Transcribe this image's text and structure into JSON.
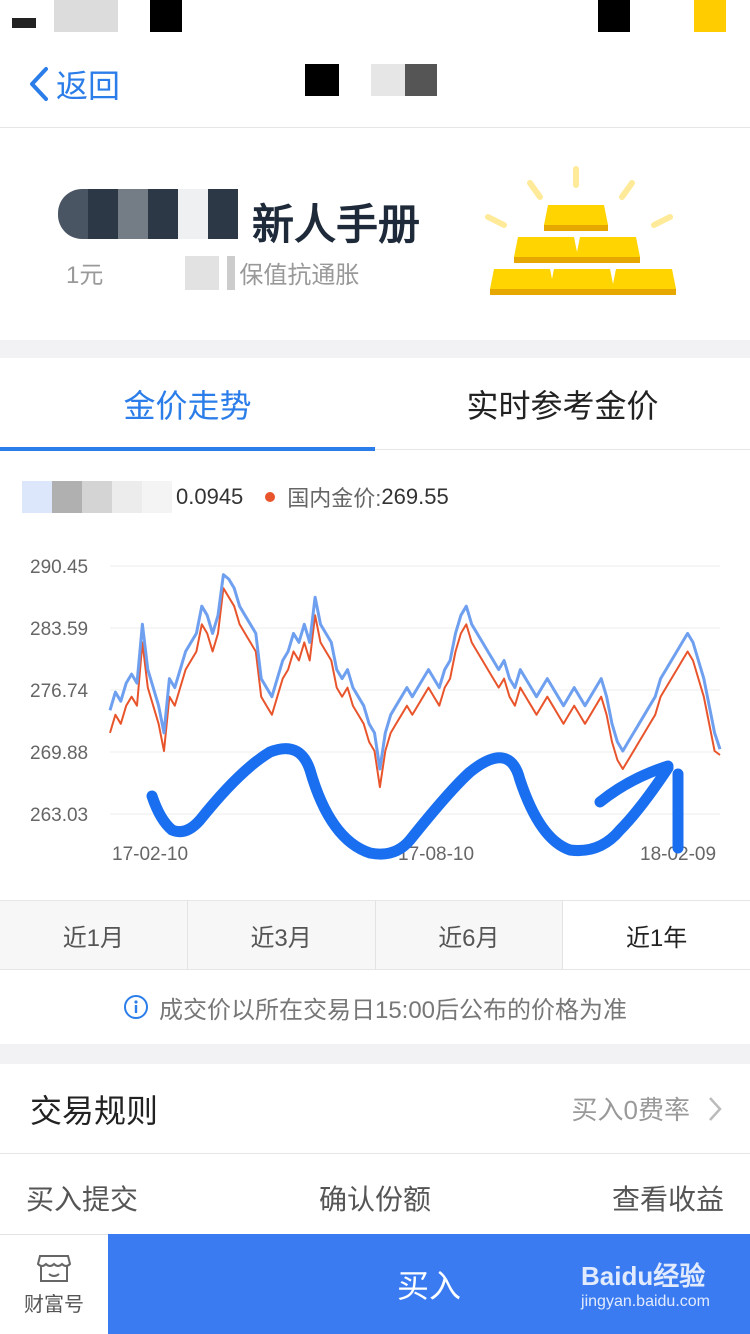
{
  "nav": {
    "back_label": "返回"
  },
  "banner": {
    "title": "新人手册",
    "sub_prefix": "1元",
    "sub_suffix": "保值抗通胀"
  },
  "tabs": [
    {
      "label": "金价走势",
      "active": true
    },
    {
      "label": "实时参考金价",
      "active": false
    }
  ],
  "legend": {
    "value1": "0.0945",
    "label2": "国内金价:",
    "value2": "269.55",
    "color2": "#e8552c"
  },
  "chart_data": {
    "type": "line",
    "yticks": [
      "290.45",
      "283.59",
      "276.74",
      "269.88",
      "263.03"
    ],
    "ylim": [
      263.03,
      290.45
    ],
    "xticks": [
      "17-02-10",
      "17-08-10",
      "18-02-09"
    ],
    "series": [
      {
        "name": "国内金价",
        "color": "#e8552c",
        "values": [
          272,
          274,
          273,
          275,
          276,
          275,
          282,
          277,
          275,
          273,
          270,
          276,
          275,
          277,
          279,
          280,
          281,
          284,
          283,
          281,
          283,
          288,
          287,
          286,
          284,
          283,
          282,
          281,
          276,
          275,
          274,
          276,
          278,
          279,
          281,
          280,
          282,
          280,
          285,
          282,
          281,
          280,
          277,
          276,
          277,
          275,
          274,
          273,
          271,
          270,
          266,
          270,
          272,
          273,
          274,
          275,
          274,
          275,
          276,
          277,
          276,
          275,
          277,
          278,
          281,
          283,
          284,
          282,
          281,
          280,
          279,
          278,
          277,
          278,
          276,
          275,
          277,
          276,
          275,
          274,
          275,
          276,
          275,
          274,
          273,
          274,
          275,
          274,
          273,
          274,
          275,
          276,
          274,
          271,
          269,
          268,
          269,
          270,
          271,
          272,
          273,
          274,
          276,
          277,
          278,
          279,
          280,
          281,
          280,
          278,
          276,
          273,
          270,
          269.55
        ]
      },
      {
        "name": "参考价",
        "color": "#6fa0f0",
        "values": [
          274.5,
          276.5,
          275.5,
          277.5,
          278.5,
          277.5,
          284,
          279,
          277,
          275,
          272,
          278,
          277,
          279,
          281,
          282,
          283,
          286,
          285,
          283,
          285,
          289.5,
          289,
          288,
          286,
          285,
          284,
          283,
          278,
          277,
          276,
          278,
          280,
          281,
          283,
          282,
          284,
          282,
          287,
          284,
          283,
          282,
          279,
          278,
          279,
          277,
          276,
          275,
          273,
          272,
          268,
          272,
          274,
          275,
          276,
          277,
          276,
          277,
          278,
          279,
          278,
          277,
          279,
          280,
          283,
          285,
          286,
          284,
          283,
          282,
          281,
          280,
          279,
          280,
          278,
          277,
          279,
          278,
          277,
          276,
          277,
          278,
          277,
          276,
          275,
          276,
          277,
          276,
          275,
          276,
          277,
          278,
          276,
          273,
          271,
          270,
          271,
          272,
          273,
          274,
          275,
          276,
          278,
          279,
          280,
          281,
          282,
          283,
          282,
          280,
          278,
          275,
          272,
          270.2
        ]
      }
    ]
  },
  "ranges": [
    {
      "label": "近1月",
      "active": false
    },
    {
      "label": "近3月",
      "active": false
    },
    {
      "label": "近6月",
      "active": false
    },
    {
      "label": "近1年",
      "active": true
    }
  ],
  "note": "成交价以所在交易日15:00后公布的价格为准",
  "rules": {
    "title": "交易规则",
    "right": "买入0费率"
  },
  "steps": [
    "买入提交",
    "确认份额",
    "查看收益"
  ],
  "bottom": {
    "wealth_label": "财富号",
    "buy_label": "买入"
  },
  "watermark": {
    "brand": "Baidu经验",
    "url": "jingyan.baidu.com"
  }
}
